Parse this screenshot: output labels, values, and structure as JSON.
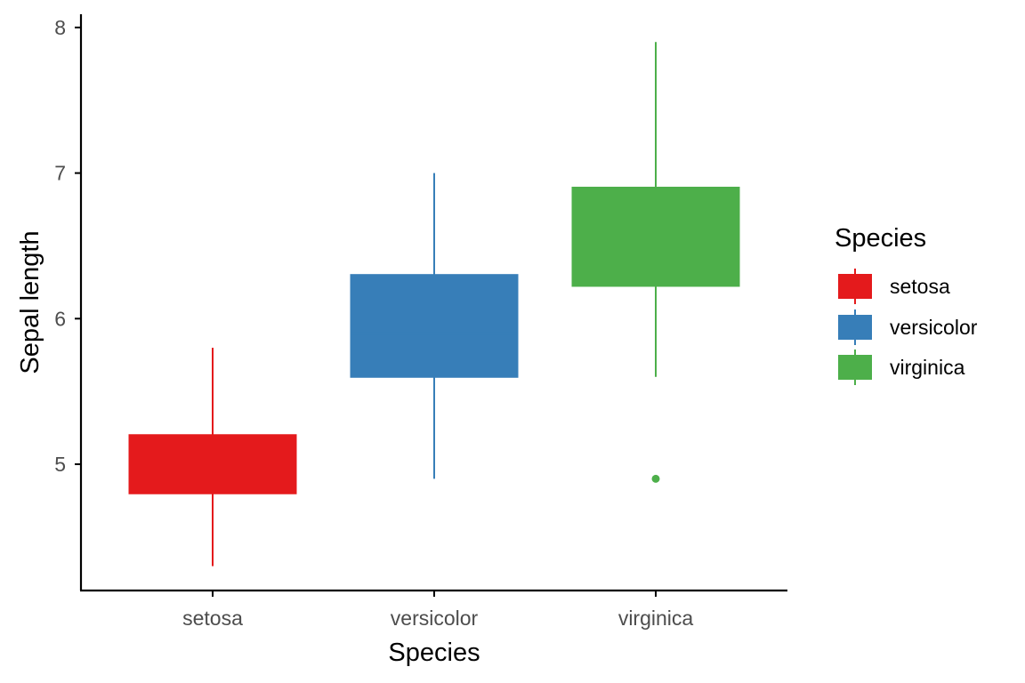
{
  "chart_data": {
    "type": "boxplot",
    "xlabel": "Species",
    "ylabel": "Sepal length",
    "ylim": [
      4.2,
      8.08
    ],
    "yticks": [
      5,
      6,
      7,
      8
    ],
    "grid": false,
    "legend": {
      "title": "Species",
      "placement": "right",
      "entries": [
        "setosa",
        "versicolor",
        "virginica"
      ]
    },
    "categories": [
      "setosa",
      "versicolor",
      "virginica"
    ],
    "series": [
      {
        "name": "setosa",
        "color": "#E41A1C",
        "min": 4.3,
        "q1": 4.8,
        "median": 5.0,
        "q3": 5.2,
        "max": 5.8,
        "outliers": []
      },
      {
        "name": "versicolor",
        "color": "#377EB8",
        "min": 4.9,
        "q1": 5.6,
        "median": 5.9,
        "q3": 6.3,
        "max": 7.0,
        "outliers": []
      },
      {
        "name": "virginica",
        "color": "#4DAF4A",
        "min": 5.6,
        "q1": 6.225,
        "median": 6.5,
        "q3": 6.9,
        "max": 7.9,
        "outliers": [
          4.9
        ]
      }
    ]
  }
}
